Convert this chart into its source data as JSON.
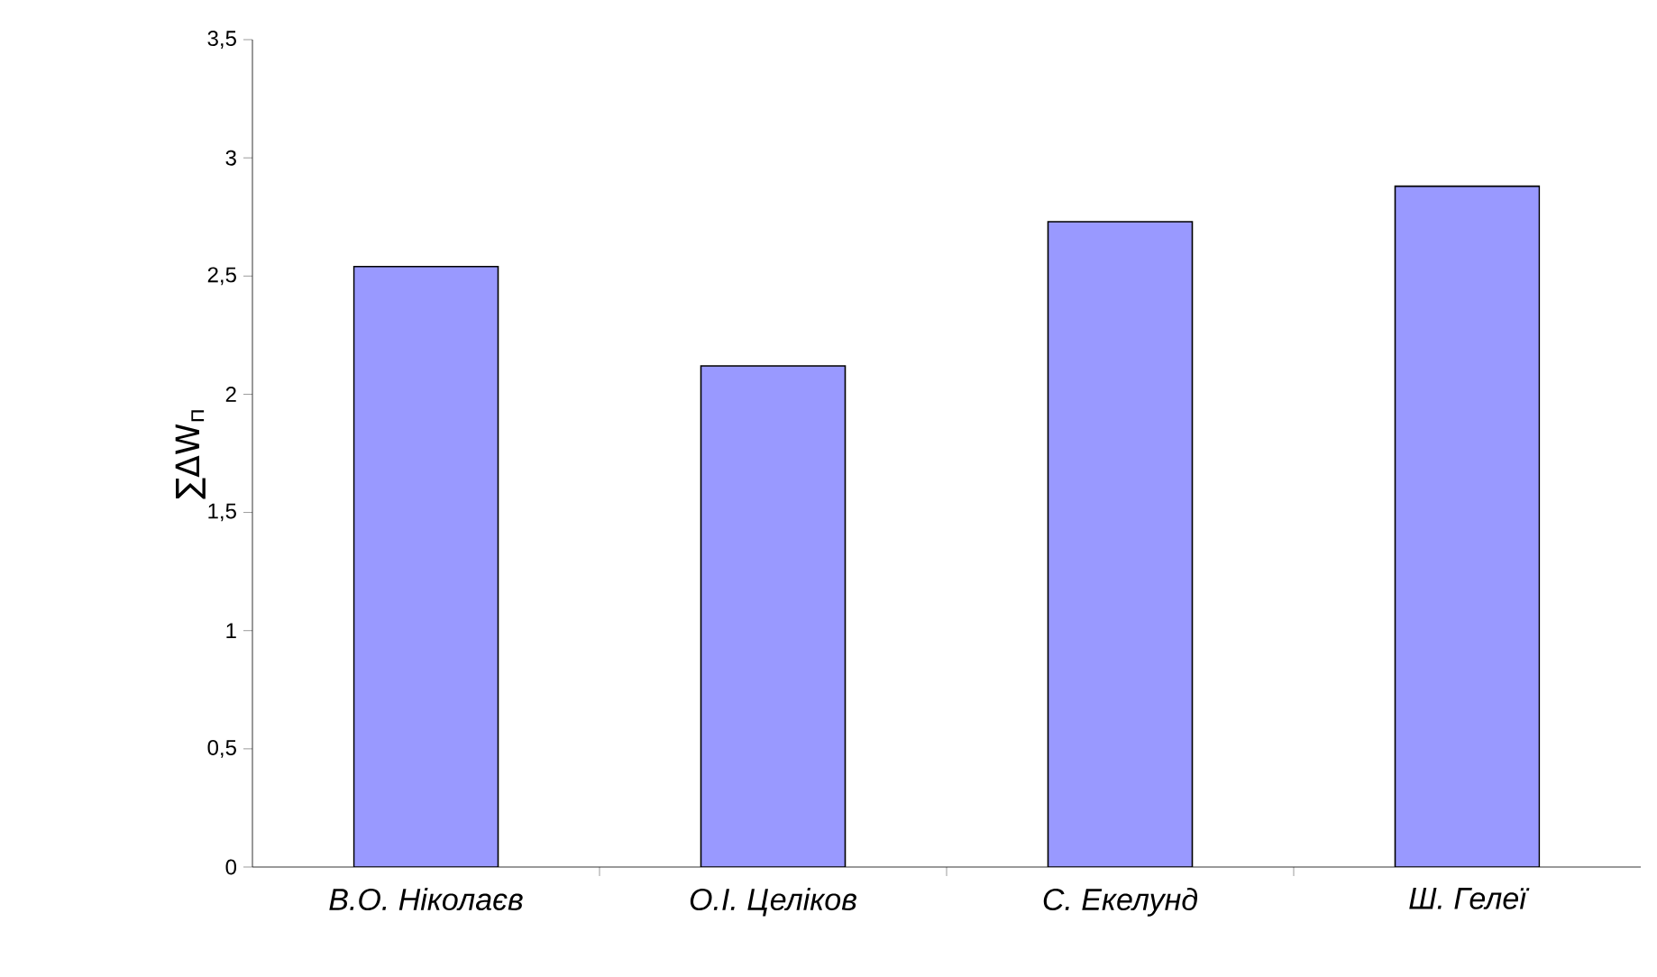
{
  "chart_data": {
    "type": "bar",
    "categories": [
      "В.О. Ніколаєв",
      "О.І. Целіков",
      "С. Екелунд",
      "Ш. Гелеї"
    ],
    "values": [
      2.54,
      2.12,
      2.73,
      2.88
    ],
    "color": "#9999ff",
    "ylabel": "∑ΔW$_{п}$",
    "ylim": [
      0,
      3.5
    ],
    "yticks": [
      0,
      {
        "value": 0.5,
        "label": "0,5"
      },
      1,
      {
        "value": 1.5,
        "label": "1,5"
      },
      2,
      {
        "value": 2.5,
        "label": "2,5"
      },
      3,
      {
        "value": 3.5,
        "label": "3,5"
      }
    ],
    "grid": false
  }
}
